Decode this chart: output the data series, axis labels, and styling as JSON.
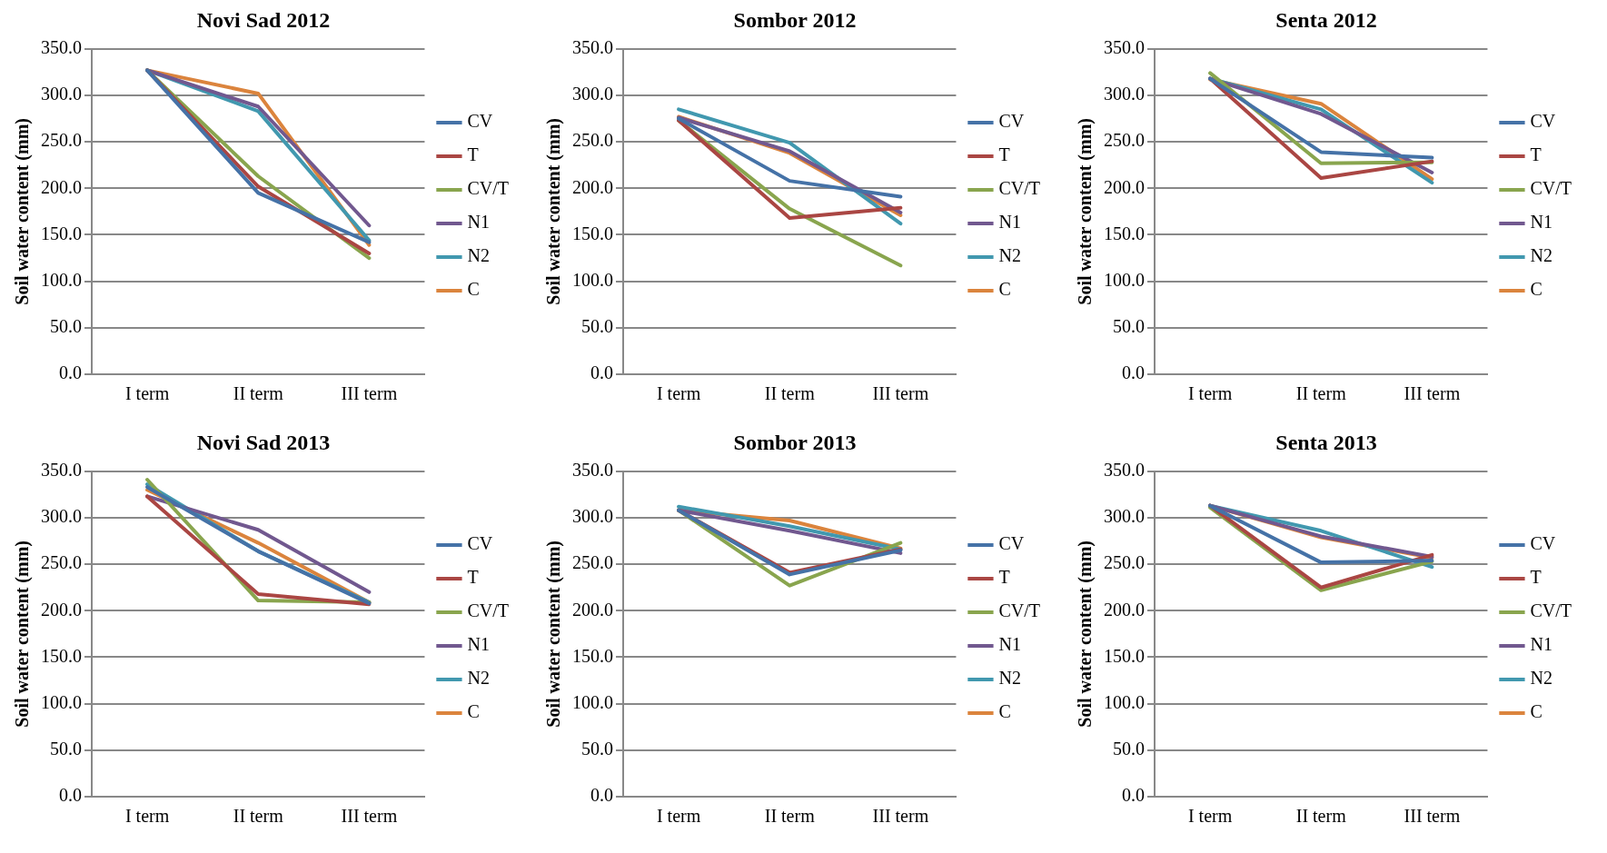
{
  "chart_data": [
    {
      "type": "line",
      "title": "Novi Sad 2012",
      "ylabel": "Soil water content (mm)",
      "categories": [
        "I term",
        "II term",
        "III term"
      ],
      "ylim": [
        0,
        350
      ],
      "yticks": [
        {
          "value": 0,
          "label": "0.0"
        },
        {
          "value": 50,
          "label": "50.0"
        },
        {
          "value": 100,
          "label": "100.0"
        },
        {
          "value": 150,
          "label": "150.0"
        },
        {
          "value": 200,
          "label": "200.0"
        },
        {
          "value": 250,
          "label": "250.0"
        },
        {
          "value": 300,
          "label": "300.0"
        },
        {
          "value": 350,
          "label": "350.0"
        }
      ],
      "grid": "y",
      "legend": "right",
      "series": [
        {
          "name": "CV",
          "color": "#4572a7",
          "values": [
            327,
            195,
            142
          ]
        },
        {
          "name": "T",
          "color": "#aa4643",
          "values": [
            327,
            202,
            130
          ]
        },
        {
          "name": "CV/T",
          "color": "#89a54e",
          "values": [
            327,
            213,
            125
          ]
        },
        {
          "name": "N1",
          "color": "#71588f",
          "values": [
            327,
            288,
            160
          ]
        },
        {
          "name": "N2",
          "color": "#4198af",
          "values": [
            327,
            283,
            144
          ]
        },
        {
          "name": "C",
          "color": "#db843d",
          "values": [
            327,
            302,
            139
          ]
        }
      ]
    },
    {
      "type": "line",
      "title": "Sombor 2012",
      "ylabel": "Soil water content (mm)",
      "categories": [
        "I term",
        "II term",
        "III term"
      ],
      "ylim": [
        0,
        350
      ],
      "yticks": [
        {
          "value": 0,
          "label": "0.0"
        },
        {
          "value": 50,
          "label": "50.0"
        },
        {
          "value": 100,
          "label": "100.0"
        },
        {
          "value": 150,
          "label": "150.0"
        },
        {
          "value": 200,
          "label": "200.0"
        },
        {
          "value": 250,
          "label": "250.0"
        },
        {
          "value": 300,
          "label": "300.0"
        },
        {
          "value": 350,
          "label": "350.0"
        }
      ],
      "grid": "y",
      "legend": "right",
      "series": [
        {
          "name": "CV",
          "color": "#4572a7",
          "values": [
            275,
            208,
            191
          ]
        },
        {
          "name": "T",
          "color": "#aa4643",
          "values": [
            273,
            168,
            179
          ]
        },
        {
          "name": "CV/T",
          "color": "#89a54e",
          "values": [
            273,
            178,
            117
          ]
        },
        {
          "name": "N1",
          "color": "#71588f",
          "values": [
            276,
            240,
            174
          ]
        },
        {
          "name": "N2",
          "color": "#4198af",
          "values": [
            285,
            249,
            162
          ]
        },
        {
          "name": "C",
          "color": "#db843d",
          "values": [
            277,
            238,
            171
          ]
        }
      ]
    },
    {
      "type": "line",
      "title": "Senta 2012",
      "ylabel": "Soil water content (mm)",
      "categories": [
        "I term",
        "II term",
        "III term"
      ],
      "ylim": [
        0,
        350
      ],
      "yticks": [
        {
          "value": 0,
          "label": "0.0"
        },
        {
          "value": 50,
          "label": "50.0"
        },
        {
          "value": 100,
          "label": "100.0"
        },
        {
          "value": 150,
          "label": "150.0"
        },
        {
          "value": 200,
          "label": "200.0"
        },
        {
          "value": 250,
          "label": "250.0"
        },
        {
          "value": 300,
          "label": "300.0"
        },
        {
          "value": 350,
          "label": "350.0"
        }
      ],
      "grid": "y",
      "legend": "right",
      "series": [
        {
          "name": "CV",
          "color": "#4572a7",
          "values": [
            318,
            239,
            233
          ]
        },
        {
          "name": "T",
          "color": "#aa4643",
          "values": [
            318,
            211,
            229
          ]
        },
        {
          "name": "CV/T",
          "color": "#89a54e",
          "values": [
            324,
            227,
            228
          ]
        },
        {
          "name": "N1",
          "color": "#71588f",
          "values": [
            318,
            280,
            217
          ]
        },
        {
          "name": "N2",
          "color": "#4198af",
          "values": [
            318,
            285,
            206
          ]
        },
        {
          "name": "C",
          "color": "#db843d",
          "values": [
            317,
            291,
            210
          ]
        }
      ]
    },
    {
      "type": "line",
      "title": "Novi Sad 2013",
      "ylabel": "Soil water content (mm)",
      "categories": [
        "I term",
        "II term",
        "III term"
      ],
      "ylim": [
        0,
        350
      ],
      "yticks": [
        {
          "value": 0,
          "label": "0.0"
        },
        {
          "value": 50,
          "label": "50.0"
        },
        {
          "value": 100,
          "label": "100.0"
        },
        {
          "value": 150,
          "label": "150.0"
        },
        {
          "value": 200,
          "label": "200.0"
        },
        {
          "value": 250,
          "label": "250.0"
        },
        {
          "value": 300,
          "label": "300.0"
        },
        {
          "value": 350,
          "label": "350.0"
        }
      ],
      "grid": "y",
      "legend": "right",
      "series": [
        {
          "name": "CV",
          "color": "#4572a7",
          "values": [
            333,
            264,
            208
          ]
        },
        {
          "name": "T",
          "color": "#aa4643",
          "values": [
            323,
            218,
            207
          ]
        },
        {
          "name": "CV/T",
          "color": "#89a54e",
          "values": [
            341,
            211,
            209
          ]
        },
        {
          "name": "N1",
          "color": "#71588f",
          "values": [
            323,
            287,
            220
          ]
        },
        {
          "name": "N2",
          "color": "#4198af",
          "values": [
            336,
            264,
            209
          ]
        },
        {
          "name": "C",
          "color": "#db843d",
          "values": [
            330,
            273,
            209
          ]
        }
      ]
    },
    {
      "type": "line",
      "title": "Sombor 2013",
      "ylabel": "Soil water content (mm)",
      "categories": [
        "I term",
        "II term",
        "III term"
      ],
      "ylim": [
        0,
        350
      ],
      "yticks": [
        {
          "value": 0,
          "label": "0.0"
        },
        {
          "value": 50,
          "label": "50.0"
        },
        {
          "value": 100,
          "label": "100.0"
        },
        {
          "value": 150,
          "label": "150.0"
        },
        {
          "value": 200,
          "label": "200.0"
        },
        {
          "value": 250,
          "label": "250.0"
        },
        {
          "value": 300,
          "label": "300.0"
        },
        {
          "value": 350,
          "label": "350.0"
        }
      ],
      "grid": "y",
      "legend": "right",
      "series": [
        {
          "name": "CV",
          "color": "#4572a7",
          "values": [
            308,
            239,
            265
          ]
        },
        {
          "name": "T",
          "color": "#aa4643",
          "values": [
            308,
            241,
            266
          ]
        },
        {
          "name": "CV/T",
          "color": "#89a54e",
          "values": [
            308,
            227,
            273
          ]
        },
        {
          "name": "N1",
          "color": "#71588f",
          "values": [
            308,
            286,
            262
          ]
        },
        {
          "name": "N2",
          "color": "#4198af",
          "values": [
            312,
            291,
            266
          ]
        },
        {
          "name": "C",
          "color": "#db843d",
          "values": [
            308,
            297,
            267
          ]
        }
      ]
    },
    {
      "type": "line",
      "title": "Senta 2013",
      "ylabel": "Soil water content (mm)",
      "categories": [
        "I term",
        "II term",
        "III term"
      ],
      "ylim": [
        0,
        350
      ],
      "yticks": [
        {
          "value": 0,
          "label": "0.0"
        },
        {
          "value": 50,
          "label": "50.0"
        },
        {
          "value": 100,
          "label": "100.0"
        },
        {
          "value": 150,
          "label": "150.0"
        },
        {
          "value": 200,
          "label": "200.0"
        },
        {
          "value": 250,
          "label": "250.0"
        },
        {
          "value": 300,
          "label": "300.0"
        },
        {
          "value": 350,
          "label": "350.0"
        }
      ],
      "grid": "y",
      "legend": "right",
      "series": [
        {
          "name": "CV",
          "color": "#4572a7",
          "values": [
            313,
            252,
            254
          ]
        },
        {
          "name": "T",
          "color": "#aa4643",
          "values": [
            313,
            225,
            260
          ]
        },
        {
          "name": "CV/T",
          "color": "#89a54e",
          "values": [
            311,
            222,
            253
          ]
        },
        {
          "name": "N1",
          "color": "#71588f",
          "values": [
            313,
            280,
            258
          ]
        },
        {
          "name": "N2",
          "color": "#4198af",
          "values": [
            313,
            286,
            247
          ]
        },
        {
          "name": "C",
          "color": "#db843d",
          "values": [
            313,
            279,
            257
          ]
        }
      ]
    }
  ]
}
